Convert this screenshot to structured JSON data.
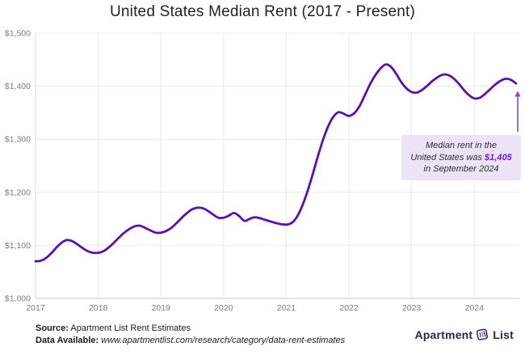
{
  "chart_data": {
    "type": "line",
    "title": "United States Median Rent (2017 - Present)",
    "xlabel": "",
    "ylabel": "",
    "ylim": [
      1000,
      1500
    ],
    "y_tick_step": 100,
    "y_tick_labels": [
      "$1,000",
      "$1,100",
      "$1,200",
      "$1,300",
      "$1,400",
      "$1,500"
    ],
    "x_tick_labels": [
      "2017",
      "2018",
      "2019",
      "2020",
      "2021",
      "2022",
      "2023",
      "2024"
    ],
    "x_months_per_tick": 12,
    "x_range_months": [
      "Jan 2017",
      "Sep 2024"
    ],
    "grid": true,
    "legend": false,
    "line_color": "#5a0fb4",
    "series": [
      {
        "name": "US Median Rent ($)",
        "values": [
          1070,
          1071,
          1076,
          1085,
          1096,
          1105,
          1110,
          1108,
          1102,
          1095,
          1089,
          1086,
          1086,
          1089,
          1096,
          1105,
          1115,
          1124,
          1131,
          1136,
          1137,
          1133,
          1128,
          1124,
          1124,
          1127,
          1133,
          1142,
          1152,
          1161,
          1168,
          1171,
          1170,
          1165,
          1158,
          1152,
          1152,
          1156,
          1161,
          1155,
          1146,
          1150,
          1153,
          1151,
          1148,
          1145,
          1142,
          1140,
          1139,
          1142,
          1153,
          1173,
          1200,
          1232,
          1266,
          1298,
          1324,
          1342,
          1351,
          1348,
          1344,
          1349,
          1362,
          1382,
          1403,
          1420,
          1433,
          1441,
          1437,
          1424,
          1408,
          1396,
          1389,
          1388,
          1393,
          1401,
          1410,
          1417,
          1422,
          1421,
          1415,
          1405,
          1393,
          1383,
          1377,
          1378,
          1385,
          1394,
          1403,
          1410,
          1414,
          1412,
          1405
        ]
      }
    ],
    "final_point": {
      "month": "September 2024",
      "value": 1405
    }
  },
  "annotation": {
    "line1": "Median rent in the",
    "line2_prefix": "United States was ",
    "highlight_value": "$1,405",
    "line3": "in September 2024",
    "bg_color": "#ece3f7",
    "value_color": "#6d1dd4",
    "arrow_color": "#7d4fd2"
  },
  "footer": {
    "source_label": "Source:",
    "source_text": " Apartment List Rent Estimates",
    "data_label": "Data Available:",
    "data_text": " www.apartmentlist.com/research/category/data-rent-estimates"
  },
  "logo": {
    "word1": "Apartment",
    "word2": "List"
  },
  "colors": {
    "grid": "#e9e9e9",
    "axis_bottom": "#c9c9c9",
    "axis_left": "#dedede",
    "tick_text": "#7b7b7b"
  }
}
